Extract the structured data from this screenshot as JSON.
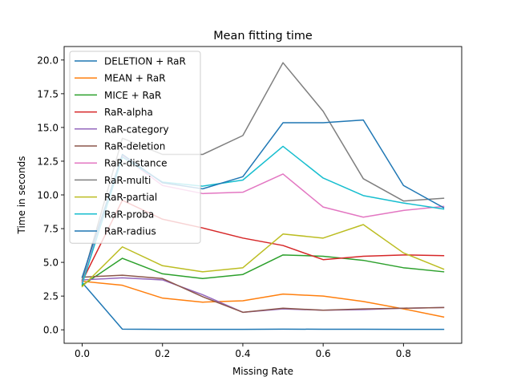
{
  "chart_data": {
    "type": "line",
    "title": "Mean fitting time",
    "xlabel": "Missing Rate",
    "ylabel": "Time in seconds",
    "xlim": [
      -0.045,
      0.945
    ],
    "ylim": [
      -1.0,
      21.0
    ],
    "xticks": [
      0.0,
      0.2,
      0.4,
      0.6,
      0.8
    ],
    "xtick_labels": [
      "0.0",
      "0.2",
      "0.4",
      "0.6",
      "0.8"
    ],
    "yticks": [
      0.0,
      2.5,
      5.0,
      7.5,
      10.0,
      12.5,
      15.0,
      17.5,
      20.0
    ],
    "ytick_labels": [
      "0.0",
      "2.5",
      "5.0",
      "7.5",
      "10.0",
      "12.5",
      "15.0",
      "17.5",
      "20.0"
    ],
    "grid": false,
    "legend_position": "top-left",
    "x": [
      0.0,
      0.1,
      0.2,
      0.3,
      0.4,
      0.5,
      0.6,
      0.7,
      0.8,
      0.9
    ],
    "series": [
      {
        "name": "DELETION + RaR",
        "color": "#1f77b4",
        "values": [
          3.5,
          0.05,
          0.03,
          0.03,
          0.03,
          0.05,
          0.04,
          0.04,
          0.03,
          0.03
        ]
      },
      {
        "name": "MEAN + RaR",
        "color": "#ff7f0e",
        "values": [
          3.6,
          3.3,
          2.35,
          2.05,
          2.15,
          2.65,
          2.5,
          2.1,
          1.55,
          0.95
        ]
      },
      {
        "name": "MICE + RaR",
        "color": "#2ca02c",
        "values": [
          3.3,
          5.3,
          4.15,
          3.8,
          4.1,
          5.55,
          5.45,
          5.15,
          4.6,
          4.3
        ]
      },
      {
        "name": "RaR-alpha",
        "color": "#d62728",
        "values": [
          3.6,
          9.6,
          8.2,
          7.55,
          6.8,
          6.25,
          5.2,
          5.45,
          5.55,
          5.5
        ]
      },
      {
        "name": "RaR-category",
        "color": "#9467bd",
        "values": [
          3.7,
          3.85,
          3.7,
          2.6,
          1.3,
          1.55,
          1.45,
          1.5,
          1.6,
          1.65
        ]
      },
      {
        "name": "RaR-deletion",
        "color": "#8c564b",
        "values": [
          3.9,
          4.05,
          3.8,
          2.45,
          1.3,
          1.6,
          1.45,
          1.55,
          1.6,
          1.65
        ]
      },
      {
        "name": "RaR-distance",
        "color": "#e377c2",
        "values": [
          3.5,
          12.9,
          10.7,
          10.1,
          10.2,
          11.55,
          9.1,
          8.35,
          8.85,
          9.15
        ]
      },
      {
        "name": "RaR-multi",
        "color": "#7f7f7f",
        "values": [
          3.7,
          14.2,
          13.0,
          13.0,
          14.4,
          19.8,
          16.2,
          11.2,
          9.55,
          9.75
        ]
      },
      {
        "name": "RaR-partial",
        "color": "#bcbd22",
        "values": [
          3.2,
          6.15,
          4.75,
          4.3,
          4.6,
          7.1,
          6.8,
          7.8,
          5.7,
          4.5
        ]
      },
      {
        "name": "RaR-proba",
        "color": "#17becf",
        "values": [
          3.4,
          12.8,
          10.95,
          10.65,
          11.1,
          13.6,
          11.25,
          9.95,
          9.4,
          8.95
        ]
      },
      {
        "name": "RaR-radius",
        "color": "#1f77b4",
        "values": [
          3.9,
          13.0,
          10.9,
          10.45,
          11.35,
          15.35,
          15.35,
          15.55,
          10.7,
          9.05
        ]
      }
    ]
  }
}
